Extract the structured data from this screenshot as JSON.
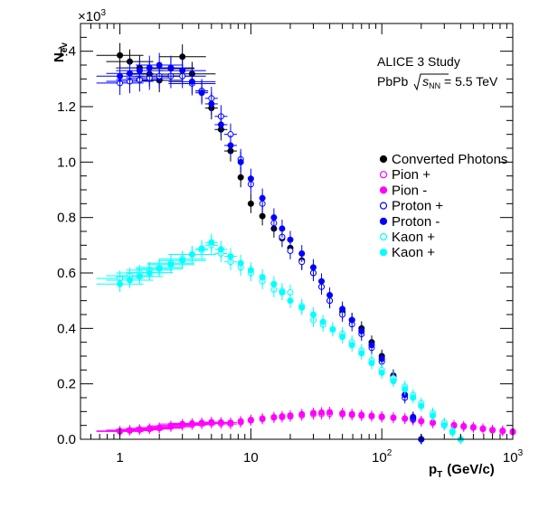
{
  "chart_data": {
    "type": "scatter",
    "title": "",
    "xlabel": "p",
    "xlabel_sub": "T",
    "xlabel_units": "(GeV/c)",
    "ylabel": "N",
    "ylabel_sub": "ev",
    "y_exponent": "×10",
    "y_exponent_power": "3",
    "x_scale": "log",
    "xlim": [
      0.5,
      1000
    ],
    "ylim": [
      0,
      1.5
    ],
    "x_ticks": [
      {
        "value": 1,
        "label": "1"
      },
      {
        "value": 10,
        "label": "10"
      },
      {
        "value": 100,
        "label": "10",
        "power": "2"
      },
      {
        "value": 1000,
        "label": "10",
        "power": "3"
      }
    ],
    "y_ticks": [
      "0.0",
      "0.2",
      "0.4",
      "0.6",
      "0.8",
      "1.0",
      "1.2",
      "1.4"
    ],
    "annotations": {
      "line1": "ALICE 3 Study",
      "line2_prefix": "PbPb ",
      "line2_s": "s",
      "line2_sub": "NN",
      "line2_suffix": " = 5.5 TeV"
    },
    "legend_position": "right",
    "colors": {
      "black": "#000000",
      "magenta": "#ff00ff",
      "blue": "#0000ff",
      "cyan": "#00ffff"
    },
    "series": [
      {
        "name": "Converted Photons",
        "color": "#000000",
        "marker": "filled",
        "x": [
          1.0,
          2.0,
          3.0,
          5.0,
          7.0,
          10.0,
          15.0,
          20.0,
          30.0,
          40.0,
          50.0,
          70.0,
          100.0,
          150.0,
          200.0
        ],
        "y": [
          1.385,
          1.295,
          1.38,
          1.195,
          1.04,
          0.85,
          0.76,
          0.69,
          0.6,
          0.5,
          0.46,
          0.4,
          0.3,
          0.16,
          0.0
        ]
      },
      {
        "name": "Pion +",
        "color": "#ff00ff",
        "marker": "open",
        "x": [
          1.0,
          2.0,
          3.0,
          5.0,
          7.0,
          10.0,
          15.0,
          20.0,
          30.0,
          40.0,
          50.0,
          70.0,
          100.0,
          150.0,
          200.0,
          300.0,
          500.0,
          700.0,
          1000.0
        ],
        "y": [
          0.028,
          0.04,
          0.05,
          0.058,
          0.055,
          0.068,
          0.078,
          0.082,
          0.09,
          0.092,
          0.09,
          0.085,
          0.08,
          0.074,
          0.065,
          0.052,
          0.042,
          0.032,
          0.026
        ]
      },
      {
        "name": "Pion -",
        "color": "#ff00ff",
        "marker": "filled",
        "x": [
          1.0,
          2.0,
          3.0,
          5.0,
          7.0,
          10.0,
          15.0,
          20.0,
          30.0,
          40.0,
          50.0,
          70.0,
          100.0,
          150.0,
          200.0,
          300.0,
          500.0,
          700.0,
          1000.0
        ],
        "y": [
          0.03,
          0.042,
          0.055,
          0.062,
          0.06,
          0.07,
          0.08,
          0.086,
          0.095,
          0.098,
          0.094,
          0.088,
          0.082,
          0.075,
          0.066,
          0.055,
          0.044,
          0.034,
          0.028
        ]
      },
      {
        "name": "Proton +",
        "color": "#0000ff",
        "marker": "open",
        "x": [
          1.0,
          2.0,
          3.0,
          5.0,
          7.0,
          10.0,
          15.0,
          20.0,
          30.0,
          40.0,
          50.0,
          70.0,
          100.0,
          150.0,
          200.0
        ],
        "y": [
          1.285,
          1.31,
          1.31,
          1.23,
          1.1,
          0.92,
          0.78,
          0.68,
          0.6,
          0.5,
          0.45,
          0.38,
          0.28,
          0.15,
          0.0
        ]
      },
      {
        "name": "Proton -",
        "color": "#0000ff",
        "marker": "filled",
        "x": [
          1.0,
          2.0,
          3.0,
          5.0,
          7.0,
          10.0,
          15.0,
          20.0,
          30.0,
          40.0,
          50.0,
          70.0,
          100.0,
          150.0,
          200.0
        ],
        "y": [
          1.31,
          1.35,
          1.33,
          1.21,
          1.06,
          0.94,
          0.8,
          0.72,
          0.62,
          0.52,
          0.47,
          0.39,
          0.29,
          0.16,
          0.0
        ]
      },
      {
        "name": "Kaon +",
        "color": "#00ffff",
        "marker": "open",
        "x": [
          1.0,
          2.0,
          3.0,
          5.0,
          7.0,
          10.0,
          15.0,
          20.0,
          30.0,
          50.0,
          70.0,
          100.0,
          150.0,
          200.0,
          300.0,
          400.0
        ],
        "y": [
          0.58,
          0.62,
          0.65,
          0.7,
          0.64,
          0.6,
          0.54,
          0.53,
          0.43,
          0.38,
          0.32,
          0.25,
          0.19,
          0.13,
          0.06,
          0.0
        ]
      },
      {
        "name": "Kaon +",
        "color": "#00ffff",
        "marker": "filled",
        "x": [
          1.0,
          2.0,
          3.0,
          5.0,
          7.0,
          10.0,
          15.0,
          20.0,
          30.0,
          50.0,
          70.0,
          100.0,
          150.0,
          200.0,
          300.0,
          400.0
        ],
        "y": [
          0.56,
          0.615,
          0.645,
          0.71,
          0.66,
          0.61,
          0.56,
          0.5,
          0.45,
          0.37,
          0.31,
          0.24,
          0.18,
          0.12,
          0.05,
          0.0
        ]
      }
    ]
  }
}
